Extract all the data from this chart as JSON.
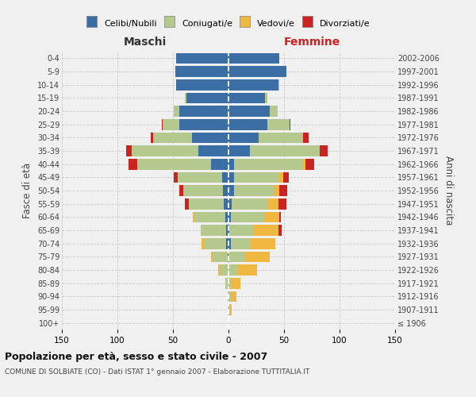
{
  "age_groups": [
    "100+",
    "95-99",
    "90-94",
    "85-89",
    "80-84",
    "75-79",
    "70-74",
    "65-69",
    "60-64",
    "55-59",
    "50-54",
    "45-49",
    "40-44",
    "35-39",
    "30-34",
    "25-29",
    "20-24",
    "15-19",
    "10-14",
    "5-9",
    "0-4"
  ],
  "birth_years": [
    "≤ 1906",
    "1907-1911",
    "1912-1916",
    "1917-1921",
    "1922-1926",
    "1927-1931",
    "1932-1936",
    "1937-1941",
    "1942-1946",
    "1947-1951",
    "1952-1956",
    "1957-1961",
    "1962-1966",
    "1967-1971",
    "1972-1976",
    "1977-1981",
    "1982-1986",
    "1987-1991",
    "1992-1996",
    "1997-2001",
    "2002-2006"
  ],
  "maschi": {
    "celibi": [
      0,
      0,
      0,
      0,
      0,
      1,
      2,
      2,
      3,
      4,
      5,
      6,
      16,
      27,
      33,
      44,
      44,
      38,
      47,
      48,
      47
    ],
    "coniugati": [
      0,
      1,
      1,
      3,
      8,
      14,
      20,
      22,
      28,
      32,
      36,
      40,
      66,
      60,
      35,
      15,
      5,
      1,
      0,
      0,
      0
    ],
    "vedovi": [
      0,
      0,
      0,
      0,
      1,
      1,
      2,
      1,
      1,
      0,
      0,
      0,
      0,
      0,
      0,
      0,
      0,
      0,
      0,
      0,
      0
    ],
    "divorziati": [
      0,
      0,
      0,
      0,
      0,
      0,
      0,
      0,
      0,
      3,
      3,
      3,
      8,
      5,
      2,
      1,
      0,
      0,
      0,
      0,
      0
    ]
  },
  "femmine": {
    "nubili": [
      0,
      0,
      0,
      0,
      0,
      0,
      2,
      1,
      2,
      3,
      5,
      5,
      5,
      19,
      27,
      35,
      37,
      33,
      45,
      52,
      46
    ],
    "coniugate": [
      0,
      1,
      2,
      3,
      8,
      15,
      18,
      22,
      30,
      33,
      36,
      40,
      62,
      63,
      40,
      20,
      7,
      2,
      1,
      0,
      0
    ],
    "vedove": [
      0,
      2,
      5,
      8,
      18,
      22,
      22,
      22,
      14,
      9,
      5,
      4,
      2,
      0,
      0,
      0,
      0,
      0,
      0,
      0,
      0
    ],
    "divorziate": [
      0,
      0,
      0,
      0,
      0,
      0,
      0,
      3,
      1,
      7,
      7,
      5,
      8,
      7,
      5,
      1,
      0,
      0,
      0,
      0,
      0
    ]
  },
  "colors": {
    "celibi_nubili": "#3a6ea5",
    "coniugati": "#b5c98e",
    "vedovi": "#f0b840",
    "divorziati": "#cc2222"
  },
  "title": "Popolazione per età, sesso e stato civile - 2007",
  "subtitle": "COMUNE DI SOLBIATE (CO) - Dati ISTAT 1° gennaio 2007 - Elaborazione TUTTITALIA.IT",
  "xlabel_left": "Maschi",
  "xlabel_right": "Femmine",
  "ylabel_left": "Fasce di età",
  "ylabel_right": "Anni di nascita",
  "xlim": 150,
  "legend_labels": [
    "Celibi/Nubili",
    "Coniugati/e",
    "Vedovi/e",
    "Divorziati/e"
  ],
  "background_color": "#f0f0f0",
  "grid_color": "#cccccc"
}
